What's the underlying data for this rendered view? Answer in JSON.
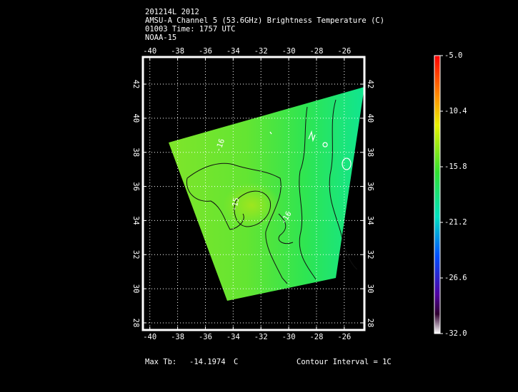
{
  "chart_data": {
    "type": "contour",
    "title_lines": [
      "201214L 2012",
      "AMSU-A Channel 5 (53.6GHz) Brightness Temperature (C)",
      "01003 Time: 1757 UTC",
      "NOAA-15"
    ],
    "xlim": [
      -40.5,
      -24.55
    ],
    "xticks": [
      -40,
      -38,
      -36,
      -34,
      -32,
      -30,
      -28,
      -26
    ],
    "ylim": [
      27.58,
      43.59
    ],
    "yticks": [
      28,
      30,
      32,
      34,
      36,
      38,
      40,
      42
    ],
    "grid": true,
    "colorbar": {
      "lim": [
        -32,
        -5
      ],
      "ticks": [
        {
          "value": -5,
          "label": "-5.0"
        },
        -10.4,
        -15.8,
        -21.2,
        -26.6,
        {
          "value": -32,
          "label": "-32.0"
        }
      ]
    },
    "contour_labels": [
      "-16",
      "-15",
      "-16"
    ],
    "max_label": "Max Tb:",
    "max_value": -14.1974,
    "max_unit": "C",
    "contour_interval": "Contour Interval = 1C"
  }
}
